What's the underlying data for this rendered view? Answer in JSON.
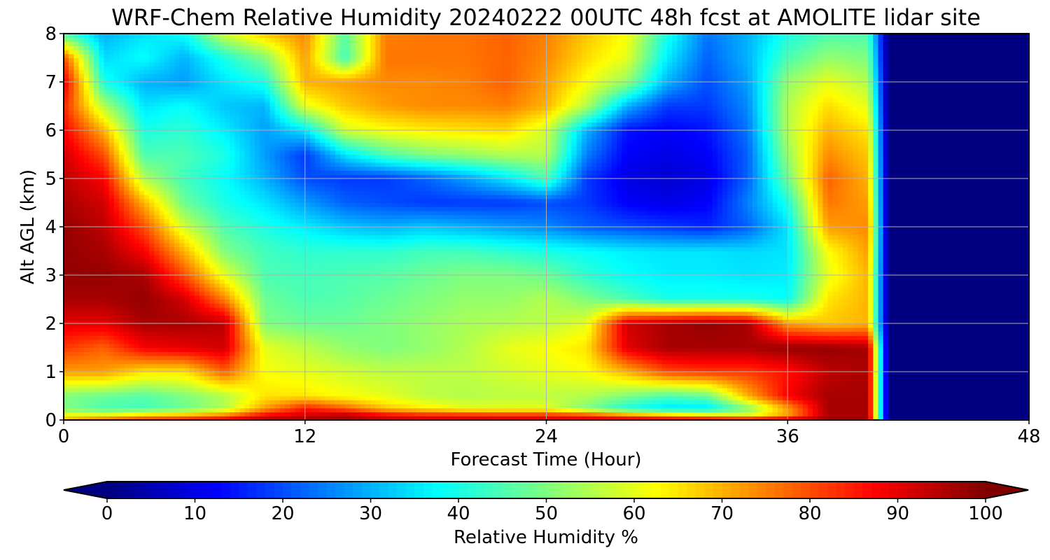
{
  "chart_data": {
    "type": "heatmap",
    "title": "WRF-Chem Relative Humidity 20240222 00UTC 48h fcst at AMOLITE lidar site",
    "xlabel": "Forecast Time (Hour)",
    "ylabel": "Alt AGL (km)",
    "xlim": [
      0,
      48
    ],
    "ylim": [
      0,
      8
    ],
    "x_ticks": [
      "0",
      "12",
      "24",
      "36",
      "48"
    ],
    "y_ticks": [
      "0",
      "1",
      "2",
      "3",
      "4",
      "5",
      "6",
      "7",
      "8"
    ],
    "grid": true,
    "colormap": "jet",
    "colorbar": {
      "label": "Relative Humidity %",
      "range": [
        0,
        100
      ],
      "ticks": [
        "0",
        "10",
        "20",
        "30",
        "40",
        "50",
        "60",
        "70",
        "80",
        "90",
        "100"
      ],
      "extend": "both",
      "placement": "bottom"
    },
    "x_hours": [
      0,
      2,
      4,
      6,
      8,
      10,
      12,
      14,
      16,
      18,
      20,
      22,
      24,
      26,
      28,
      30,
      32,
      34,
      36,
      38,
      40,
      41,
      42,
      44,
      46,
      48
    ],
    "z_km": [
      0,
      0.1,
      0.25,
      0.5,
      1,
      1.5,
      2,
      2.5,
      3,
      3.5,
      4,
      4.5,
      5,
      5.5,
      6,
      6.5,
      7,
      7.5,
      8
    ],
    "rh_percent_rows_by_height": [
      [
        70,
        80,
        85,
        88,
        92,
        98,
        98,
        98,
        95,
        94,
        94,
        94,
        93,
        93,
        94,
        94,
        94,
        94,
        96,
        98,
        98,
        0,
        0,
        0,
        0,
        0
      ],
      [
        62,
        62,
        68,
        70,
        75,
        88,
        92,
        95,
        88,
        85,
        85,
        84,
        84,
        82,
        75,
        70,
        65,
        60,
        72,
        96,
        96,
        0,
        0,
        0,
        0,
        0
      ],
      [
        50,
        45,
        44,
        48,
        55,
        72,
        85,
        78,
        68,
        64,
        60,
        60,
        60,
        50,
        40,
        35,
        35,
        50,
        72,
        96,
        96,
        0,
        0,
        0,
        0,
        0
      ],
      [
        50,
        48,
        46,
        50,
        55,
        65,
        65,
        62,
        60,
        56,
        55,
        56,
        56,
        55,
        50,
        45,
        48,
        70,
        88,
        96,
        96,
        0,
        0,
        0,
        0,
        0
      ],
      [
        72,
        72,
        65,
        65,
        78,
        62,
        60,
        58,
        56,
        56,
        56,
        58,
        60,
        62,
        70,
        80,
        82,
        82,
        86,
        94,
        96,
        0,
        0,
        0,
        0,
        0
      ],
      [
        82,
        78,
        88,
        90,
        92,
        60,
        56,
        52,
        50,
        52,
        55,
        60,
        62,
        65,
        90,
        96,
        96,
        96,
        98,
        98,
        96,
        0,
        0,
        0,
        0,
        0
      ],
      [
        90,
        90,
        96,
        96,
        94,
        50,
        48,
        48,
        50,
        52,
        54,
        55,
        56,
        60,
        92,
        96,
        98,
        96,
        72,
        68,
        70,
        0,
        0,
        0,
        0,
        0
      ],
      [
        96,
        96,
        98,
        92,
        75,
        48,
        45,
        46,
        48,
        50,
        52,
        52,
        55,
        50,
        45,
        40,
        40,
        40,
        38,
        65,
        70,
        0,
        0,
        0,
        0,
        0
      ],
      [
        98,
        98,
        96,
        80,
        60,
        45,
        44,
        45,
        46,
        48,
        50,
        50,
        48,
        42,
        38,
        36,
        36,
        35,
        36,
        60,
        70,
        0,
        0,
        0,
        0,
        0
      ],
      [
        98,
        96,
        88,
        70,
        50,
        44,
        42,
        42,
        42,
        44,
        44,
        42,
        40,
        38,
        36,
        35,
        35,
        34,
        35,
        62,
        72,
        0,
        0,
        0,
        0,
        0
      ],
      [
        98,
        94,
        80,
        58,
        45,
        40,
        36,
        32,
        30,
        32,
        30,
        28,
        26,
        22,
        20,
        18,
        16,
        22,
        35,
        72,
        74,
        0,
        0,
        0,
        0,
        0
      ],
      [
        96,
        92,
        70,
        48,
        40,
        35,
        28,
        22,
        20,
        18,
        18,
        18,
        20,
        18,
        12,
        10,
        12,
        25,
        40,
        76,
        72,
        0,
        0,
        0,
        0,
        0
      ],
      [
        94,
        88,
        55,
        44,
        38,
        30,
        20,
        18,
        18,
        22,
        28,
        35,
        45,
        18,
        10,
        8,
        10,
        22,
        48,
        78,
        70,
        0,
        0,
        0,
        0,
        0
      ],
      [
        92,
        80,
        45,
        45,
        40,
        28,
        18,
        35,
        45,
        50,
        52,
        55,
        55,
        25,
        12,
        10,
        12,
        22,
        52,
        74,
        68,
        0,
        0,
        0,
        0,
        0
      ],
      [
        88,
        70,
        40,
        42,
        36,
        28,
        35,
        58,
        62,
        64,
        65,
        66,
        58,
        30,
        14,
        12,
        14,
        24,
        55,
        70,
        65,
        0,
        0,
        0,
        0,
        0
      ],
      [
        84,
        55,
        35,
        38,
        32,
        30,
        60,
        68,
        72,
        74,
        74,
        75,
        70,
        55,
        30,
        18,
        18,
        26,
        55,
        66,
        60,
        0,
        0,
        0,
        0,
        0
      ],
      [
        90,
        40,
        30,
        28,
        35,
        40,
        70,
        72,
        74,
        74,
        75,
        78,
        72,
        62,
        52,
        30,
        20,
        28,
        52,
        60,
        55,
        0,
        0,
        0,
        0,
        0
      ],
      [
        80,
        34,
        38,
        30,
        40,
        50,
        72,
        44,
        76,
        76,
        76,
        78,
        74,
        66,
        60,
        36,
        22,
        30,
        45,
        52,
        50,
        0,
        0,
        0,
        0,
        0
      ],
      [
        45,
        30,
        35,
        38,
        58,
        68,
        74,
        46,
        75,
        76,
        76,
        78,
        75,
        68,
        62,
        40,
        24,
        30,
        40,
        45,
        45,
        0,
        0,
        0,
        0,
        0
      ]
    ]
  }
}
